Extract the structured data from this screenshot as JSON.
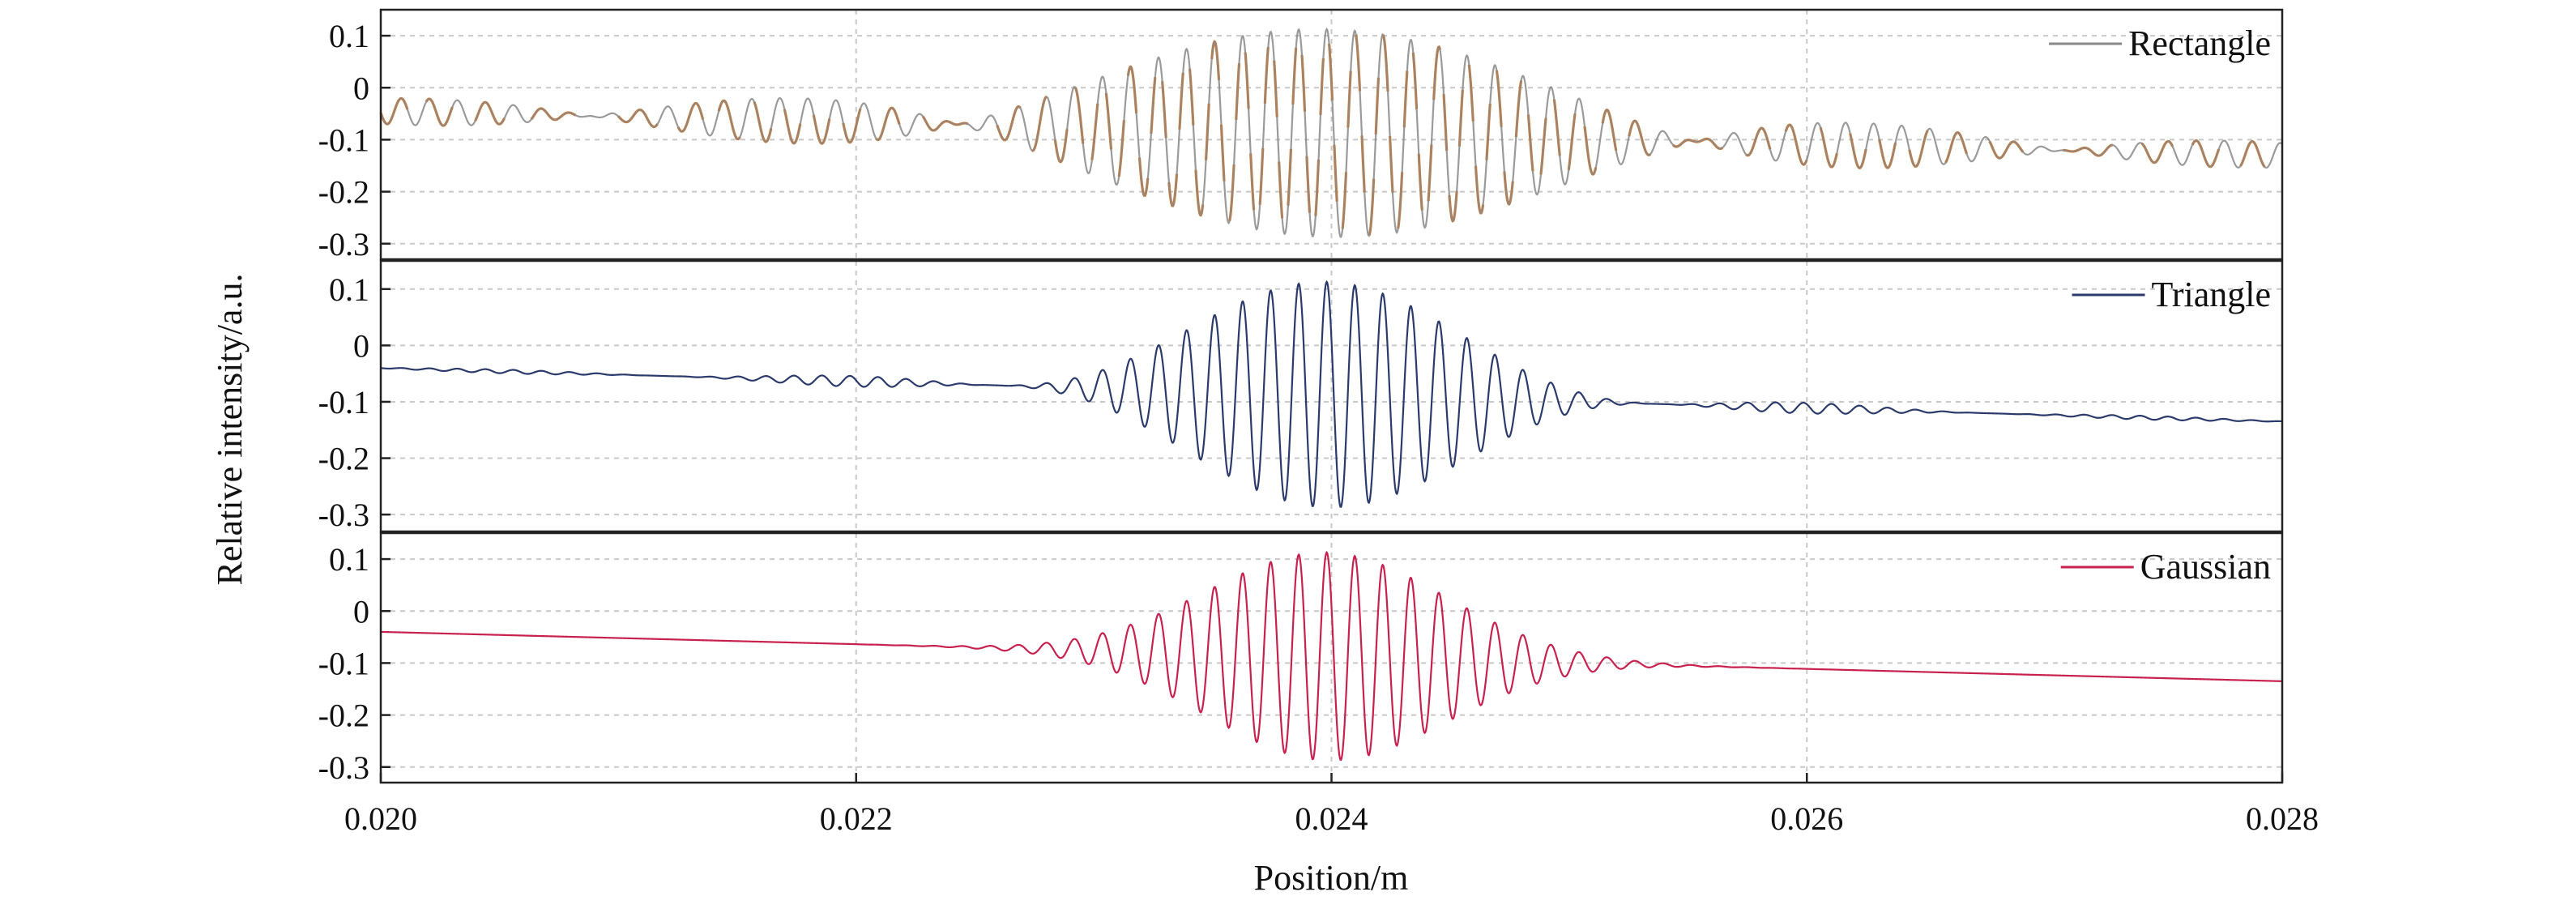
{
  "chart_data": {
    "type": "line",
    "layout": "three vertically stacked panels sharing the x axis",
    "xlabel": "Position/m",
    "ylabel": "Relative intensity/a.u.",
    "xlim": [
      0.02,
      0.028
    ],
    "x_ticks": [
      "0.020",
      "0.022",
      "0.024",
      "0.026",
      "0.028"
    ],
    "x_tick_values": [
      0.02,
      0.022,
      0.024,
      0.026,
      0.028
    ],
    "grid": true,
    "legend_placement": "top-right of each panel",
    "panels": [
      {
        "name": "Rectangle",
        "ylim": [
          -0.33,
          0.15
        ],
        "y_ticks": [
          "0.1",
          "0",
          "-0.1",
          "-0.2",
          "-0.3"
        ],
        "y_tick_values": [
          0.1,
          0,
          -0.1,
          -0.2,
          -0.3
        ],
        "series": [
          {
            "name": "Rectangle",
            "color": "#888888",
            "baseline_start": -0.045,
            "baseline_end": -0.13,
            "center": 0.02398,
            "period": 0.000118,
            "peak_envelope": 0.2,
            "envelope": "sinc",
            "envelope_width": 0.00155
          }
        ],
        "overlay_color": "#e07b28"
      },
      {
        "name": "Triangle",
        "ylim": [
          -0.33,
          0.15
        ],
        "y_ticks": [
          "0.1",
          "0",
          "-0.1",
          "-0.2",
          "-0.3"
        ],
        "y_tick_values": [
          0.1,
          0,
          -0.1,
          -0.2,
          -0.3
        ],
        "series": [
          {
            "name": "Triangle",
            "color": "#2b3a6b",
            "baseline_start": -0.04,
            "baseline_end": -0.135,
            "center": 0.02398,
            "period": 0.000118,
            "peak_envelope": 0.2,
            "envelope": "sinc-squared",
            "envelope_width": 0.0014
          }
        ]
      },
      {
        "name": "Gaussian",
        "ylim": [
          -0.33,
          0.15
        ],
        "y_ticks": [
          "0.1",
          "0",
          "-0.1",
          "-0.2",
          "-0.3"
        ],
        "y_tick_values": [
          0.1,
          0,
          -0.1,
          -0.2,
          -0.3
        ],
        "series": [
          {
            "name": "Gaussian",
            "color": "#c8204f",
            "baseline_start": -0.04,
            "baseline_end": -0.135,
            "center": 0.02398,
            "period": 0.000118,
            "peak_envelope": 0.2,
            "envelope": "gaussian",
            "envelope_width": 0.0005
          }
        ]
      }
    ]
  }
}
